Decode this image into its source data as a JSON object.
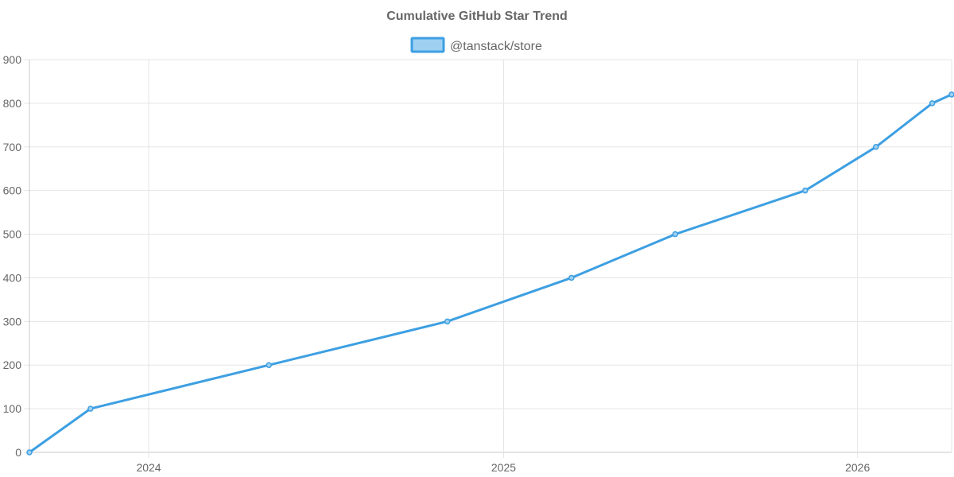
{
  "chart_data": {
    "type": "line",
    "title": "Cumulative GitHub Star Trend",
    "xlabel": "",
    "ylabel": "",
    "x_axis_type": "time",
    "x_ticks": [
      "2024",
      "2025",
      "2026"
    ],
    "y_ticks": [
      0,
      100,
      200,
      300,
      400,
      500,
      600,
      700,
      800,
      900
    ],
    "ylim": [
      0,
      900
    ],
    "xlim": [
      "2023-08-31",
      "2026-04-08"
    ],
    "grid": true,
    "legend_position": "top-center",
    "series": [
      {
        "name": "@tanstack/store",
        "color": "#3d9fe2",
        "fill_color": "#9fd0f1",
        "x": [
          "2023-08-31",
          "2023-11-02",
          "2024-05-04",
          "2024-11-04",
          "2025-03-12",
          "2025-06-27",
          "2025-11-08",
          "2026-01-20",
          "2026-03-19",
          "2026-04-08"
        ],
        "values": [
          0,
          100,
          200,
          300,
          400,
          500,
          600,
          700,
          800,
          820
        ]
      }
    ]
  }
}
